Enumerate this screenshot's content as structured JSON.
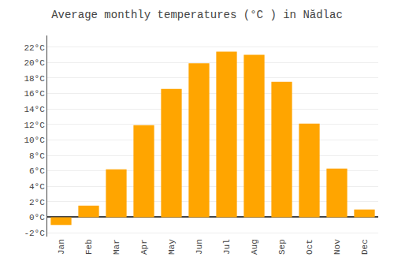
{
  "chart_data": {
    "type": "bar",
    "title": "Average monthly temperatures (°C ) in Nădlac",
    "categories": [
      "Jan",
      "Feb",
      "Mar",
      "Apr",
      "May",
      "Jun",
      "Jul",
      "Aug",
      "Sep",
      "Oct",
      "Nov",
      "Dec"
    ],
    "values": [
      -1.0,
      1.5,
      6.2,
      11.9,
      16.6,
      19.9,
      21.4,
      21.0,
      17.5,
      12.1,
      6.3,
      1.0
    ],
    "color": "#FFA500",
    "ylim": [
      -2.5,
      23.5
    ],
    "yticks": [
      {
        "value": -2,
        "label": "-2°C"
      },
      {
        "value": 0,
        "label": "0°C"
      },
      {
        "value": 2,
        "label": "2°C"
      },
      {
        "value": 4,
        "label": "4°C"
      },
      {
        "value": 6,
        "label": "6°C"
      },
      {
        "value": 8,
        "label": "8°C"
      },
      {
        "value": 10,
        "label": "10°C"
      },
      {
        "value": 12,
        "label": "12°C"
      },
      {
        "value": 14,
        "label": "14°C"
      },
      {
        "value": 16,
        "label": "16°C"
      },
      {
        "value": 18,
        "label": "18°C"
      },
      {
        "value": 20,
        "label": "20°C"
      },
      {
        "value": 22,
        "label": "22°C"
      }
    ],
    "grid": true
  }
}
